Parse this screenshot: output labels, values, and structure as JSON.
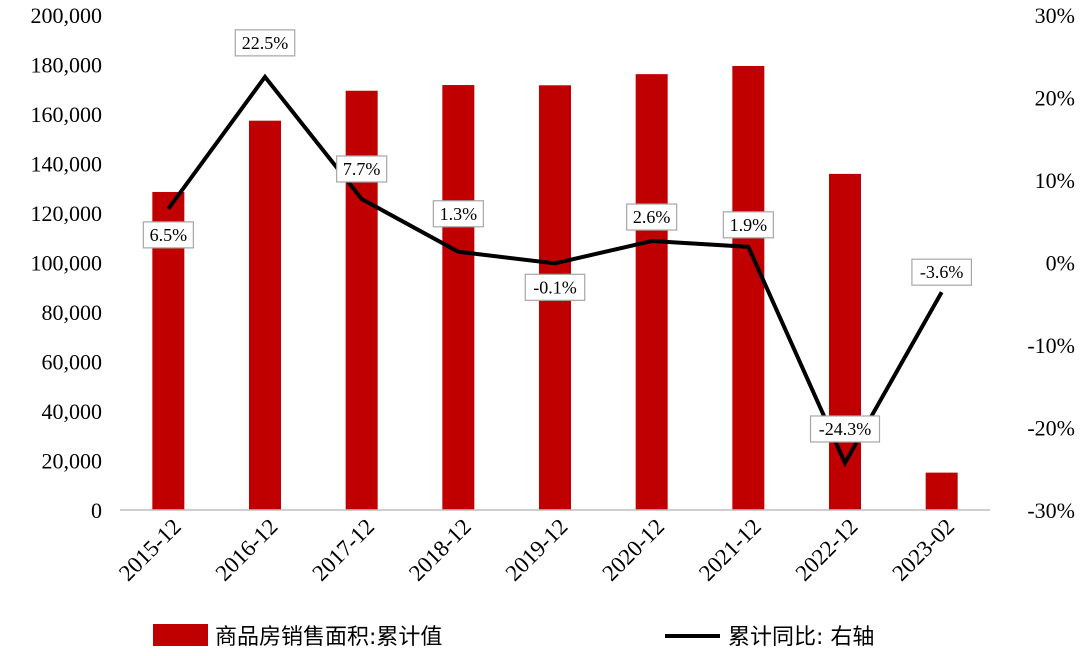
{
  "chart_data": {
    "type": "bar",
    "categories": [
      "2015-12",
      "2016-12",
      "2017-12",
      "2018-12",
      "2019-12",
      "2020-12",
      "2021-12",
      "2022-12",
      "2023-02"
    ],
    "series": [
      {
        "name": "商品房销售面积:累计值",
        "type": "bar",
        "axis": "left",
        "color": "#C00000",
        "values": [
          128500,
          157300,
          169400,
          171700,
          171600,
          176100,
          179400,
          135800,
          15100
        ]
      },
      {
        "name": "累计同比: 右轴",
        "type": "line",
        "axis": "right",
        "color": "#000000",
        "values": [
          6.5,
          22.5,
          7.7,
          1.3,
          -0.1,
          2.6,
          1.9,
          -24.3,
          -3.6
        ],
        "labels": [
          "6.5%",
          "22.5%",
          "7.7%",
          "1.3%",
          "-0.1%",
          "2.6%",
          "1.9%",
          "-24.3%",
          "-3.6%"
        ]
      }
    ],
    "y_left": {
      "min": 0,
      "max": 200000,
      "ticks": [
        "0",
        "20,000",
        "40,000",
        "60,000",
        "80,000",
        "100,000",
        "120,000",
        "140,000",
        "160,000",
        "180,000",
        "200,000"
      ]
    },
    "y_right": {
      "min": -30,
      "max": 30,
      "ticks": [
        "-30%",
        "-20%",
        "-10%",
        "0%",
        "10%",
        "20%",
        "30%"
      ]
    },
    "grid": false,
    "legend": "bottom"
  }
}
